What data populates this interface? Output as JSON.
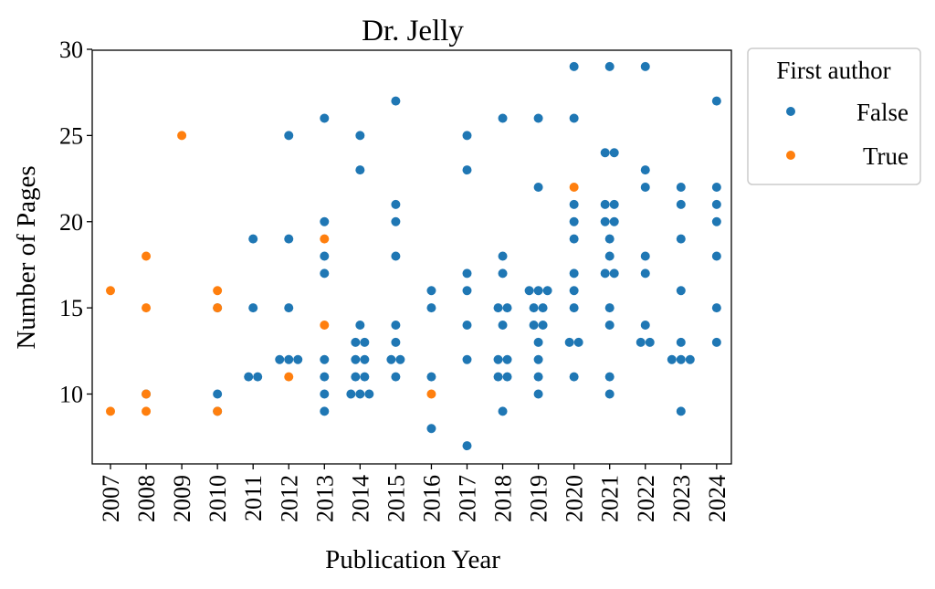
{
  "chart_data": {
    "type": "scatter",
    "title": "Dr. Jelly",
    "xlabel": "Publication Year",
    "ylabel": "Number of Pages",
    "categories": [
      "2007",
      "2008",
      "2009",
      "2010",
      "2011",
      "2012",
      "2013",
      "2014",
      "2015",
      "2016",
      "2017",
      "2018",
      "2019",
      "2020",
      "2021",
      "2022",
      "2023",
      "2024"
    ],
    "ylim": [
      6,
      30
    ],
    "yticks": [
      10,
      15,
      20,
      25,
      30
    ],
    "grid": false,
    "legend": {
      "title": "First author",
      "placement": "outside-top-right",
      "entries": [
        "False",
        "True"
      ]
    },
    "colors": {
      "False": "#1f77b4",
      "True": "#ff7f0e"
    },
    "series": [
      {
        "name": "False",
        "points": [
          [
            "2008",
            10
          ],
          [
            "2010",
            15
          ],
          [
            "2010",
            10
          ],
          [
            "2010",
            9
          ],
          [
            "2011",
            19
          ],
          [
            "2011",
            15
          ],
          [
            "2011",
            11
          ],
          [
            "2011",
            11
          ],
          [
            "2012",
            25
          ],
          [
            "2012",
            19
          ],
          [
            "2012",
            15
          ],
          [
            "2012",
            12
          ],
          [
            "2012",
            12
          ],
          [
            "2012",
            12
          ],
          [
            "2013",
            26
          ],
          [
            "2013",
            20
          ],
          [
            "2013",
            18
          ],
          [
            "2013",
            17
          ],
          [
            "2013",
            12
          ],
          [
            "2013",
            11
          ],
          [
            "2013",
            10
          ],
          [
            "2013",
            9
          ],
          [
            "2014",
            25
          ],
          [
            "2014",
            23
          ],
          [
            "2014",
            14
          ],
          [
            "2014",
            13
          ],
          [
            "2014",
            13
          ],
          [
            "2014",
            12
          ],
          [
            "2014",
            12
          ],
          [
            "2014",
            11
          ],
          [
            "2014",
            11
          ],
          [
            "2014",
            10
          ],
          [
            "2014",
            10
          ],
          [
            "2014",
            10
          ],
          [
            "2015",
            27
          ],
          [
            "2015",
            21
          ],
          [
            "2015",
            20
          ],
          [
            "2015",
            18
          ],
          [
            "2015",
            14
          ],
          [
            "2015",
            13
          ],
          [
            "2015",
            12
          ],
          [
            "2015",
            12
          ],
          [
            "2015",
            11
          ],
          [
            "2016",
            16
          ],
          [
            "2016",
            15
          ],
          [
            "2016",
            11
          ],
          [
            "2016",
            8
          ],
          [
            "2017",
            25
          ],
          [
            "2017",
            23
          ],
          [
            "2017",
            17
          ],
          [
            "2017",
            16
          ],
          [
            "2017",
            14
          ],
          [
            "2017",
            12
          ],
          [
            "2017",
            7
          ],
          [
            "2018",
            26
          ],
          [
            "2018",
            18
          ],
          [
            "2018",
            17
          ],
          [
            "2018",
            15
          ],
          [
            "2018",
            15
          ],
          [
            "2018",
            14
          ],
          [
            "2018",
            12
          ],
          [
            "2018",
            12
          ],
          [
            "2018",
            11
          ],
          [
            "2018",
            11
          ],
          [
            "2018",
            9
          ],
          [
            "2019",
            26
          ],
          [
            "2019",
            22
          ],
          [
            "2019",
            16
          ],
          [
            "2019",
            16
          ],
          [
            "2019",
            16
          ],
          [
            "2019",
            15
          ],
          [
            "2019",
            15
          ],
          [
            "2019",
            14
          ],
          [
            "2019",
            14
          ],
          [
            "2019",
            13
          ],
          [
            "2019",
            12
          ],
          [
            "2019",
            11
          ],
          [
            "2019",
            10
          ],
          [
            "2020",
            29
          ],
          [
            "2020",
            26
          ],
          [
            "2020",
            21
          ],
          [
            "2020",
            20
          ],
          [
            "2020",
            19
          ],
          [
            "2020",
            17
          ],
          [
            "2020",
            16
          ],
          [
            "2020",
            15
          ],
          [
            "2020",
            13
          ],
          [
            "2020",
            13
          ],
          [
            "2020",
            11
          ],
          [
            "2021",
            29
          ],
          [
            "2021",
            24
          ],
          [
            "2021",
            24
          ],
          [
            "2021",
            21
          ],
          [
            "2021",
            21
          ],
          [
            "2021",
            20
          ],
          [
            "2021",
            20
          ],
          [
            "2021",
            19
          ],
          [
            "2021",
            18
          ],
          [
            "2021",
            17
          ],
          [
            "2021",
            17
          ],
          [
            "2021",
            15
          ],
          [
            "2021",
            14
          ],
          [
            "2021",
            11
          ],
          [
            "2021",
            10
          ],
          [
            "2022",
            29
          ],
          [
            "2022",
            23
          ],
          [
            "2022",
            22
          ],
          [
            "2022",
            18
          ],
          [
            "2022",
            17
          ],
          [
            "2022",
            14
          ],
          [
            "2022",
            13
          ],
          [
            "2022",
            13
          ],
          [
            "2023",
            22
          ],
          [
            "2023",
            21
          ],
          [
            "2023",
            19
          ],
          [
            "2023",
            16
          ],
          [
            "2023",
            13
          ],
          [
            "2023",
            12
          ],
          [
            "2023",
            12
          ],
          [
            "2023",
            12
          ],
          [
            "2023",
            9
          ],
          [
            "2024",
            27
          ],
          [
            "2024",
            22
          ],
          [
            "2024",
            21
          ],
          [
            "2024",
            20
          ],
          [
            "2024",
            18
          ],
          [
            "2024",
            15
          ],
          [
            "2024",
            13
          ]
        ]
      },
      {
        "name": "True",
        "points": [
          [
            "2007",
            16
          ],
          [
            "2007",
            9
          ],
          [
            "2008",
            18
          ],
          [
            "2008",
            15
          ],
          [
            "2008",
            10
          ],
          [
            "2008",
            9
          ],
          [
            "2009",
            25
          ],
          [
            "2010",
            16
          ],
          [
            "2010",
            15
          ],
          [
            "2010",
            9
          ],
          [
            "2012",
            11
          ],
          [
            "2013",
            19
          ],
          [
            "2013",
            14
          ],
          [
            "2016",
            10
          ],
          [
            "2020",
            22
          ]
        ]
      }
    ]
  }
}
